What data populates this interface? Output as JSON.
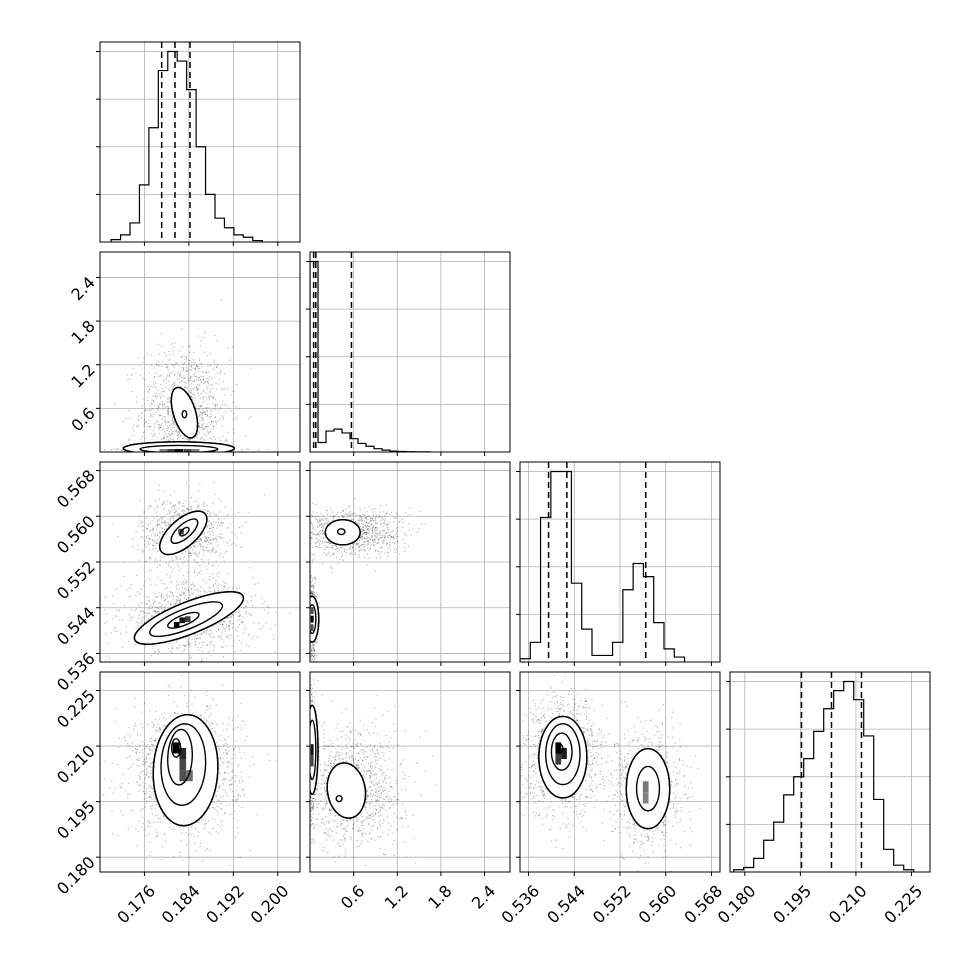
{
  "chart_data": {
    "type": "corner",
    "grid": true,
    "params": [
      {
        "range": [
          0.168,
          0.204
        ],
        "ticks": [
          0.176,
          0.184,
          0.192,
          0.2
        ],
        "tick_labels": [
          "0.176",
          "0.184",
          "0.192",
          "0.200"
        ],
        "histogram": {
          "edges": [
            0.17,
            0.1717,
            0.1734,
            0.1751,
            0.1768,
            0.1785,
            0.1802,
            0.1819,
            0.1836,
            0.1853,
            0.187,
            0.1887,
            0.1904,
            0.1921,
            0.1938,
            0.1955,
            0.1972
          ],
          "counts": [
            0.5,
            1.5,
            4,
            12,
            24,
            36,
            40,
            38,
            32,
            20,
            10,
            5,
            3,
            1.5,
            1,
            0.3
          ]
        },
        "quantiles": [
          0.1791,
          0.1815,
          0.1842
        ]
      },
      {
        "range": [
          0.0,
          2.75
        ],
        "ticks": [
          0.6,
          1.2,
          1.8,
          2.4
        ],
        "tick_labels": [
          "0.6",
          "1.2",
          "1.8",
          "2.4"
        ],
        "histogram": {
          "edges": [
            0.0,
            0.11,
            0.22,
            0.33,
            0.44,
            0.55,
            0.66,
            0.77,
            0.88,
            0.99,
            1.1,
            1.21,
            1.32,
            1.43,
            1.54,
            1.65
          ],
          "counts": [
            200,
            10,
            22,
            24,
            20,
            14,
            9,
            6,
            3.5,
            2,
            1,
            0.6,
            0.3,
            0.2,
            0.1
          ]
        },
        "quantiles": [
          0.05,
          0.08,
          0.57
        ]
      },
      {
        "range": [
          0.5345,
          0.5695
        ],
        "ticks": [
          0.536,
          0.544,
          0.552,
          0.56,
          0.568
        ],
        "tick_labels": [
          "0.536",
          "0.544",
          "0.552",
          "0.560",
          "0.568"
        ],
        "histogram": {
          "edges": [
            0.5345,
            0.5363,
            0.5381,
            0.5399,
            0.5417,
            0.5435,
            0.5453,
            0.5471,
            0.5489,
            0.5507,
            0.5525,
            0.5543,
            0.5561,
            0.5579,
            0.5597,
            0.5615,
            0.5633
          ],
          "counts": [
            1,
            6,
            44,
            58,
            58,
            24,
            10,
            2,
            2,
            6,
            22,
            30,
            26,
            12,
            4,
            1.5
          ]
        },
        "quantiles": [
          0.5395,
          0.5427,
          0.5565
        ]
      },
      {
        "range": [
          0.176,
          0.23
        ],
        "ticks": [
          0.18,
          0.195,
          0.21,
          0.225
        ],
        "tick_labels": [
          "0.180",
          "0.195",
          "0.210",
          "0.225"
        ],
        "histogram": {
          "edges": [
            0.177,
            0.1797,
            0.1824,
            0.1851,
            0.1878,
            0.1905,
            0.1932,
            0.1959,
            0.1986,
            0.2013,
            0.204,
            0.2067,
            0.2094,
            0.2121,
            0.2148,
            0.2175,
            0.2202,
            0.2229,
            0.2256
          ],
          "counts": [
            0.5,
            1,
            3,
            7,
            11,
            17,
            21,
            25,
            31,
            36,
            40,
            42,
            38,
            30,
            16,
            5,
            1.5,
            0.5
          ]
        },
        "quantiles": [
          0.1953,
          0.2034,
          0.2115
        ]
      }
    ],
    "pairs": [
      {
        "row": 1,
        "col": 0,
        "contours": [
          {
            "cx": 0.1832,
            "cy": 0.54,
            "rx": 0.002,
            "ry": 0.36,
            "rot": -0.3,
            "level": "outer"
          },
          {
            "cx": 0.1832,
            "cy": 0.52,
            "rx": 0.0004,
            "ry": 0.05,
            "rot": 0.0,
            "level": "inner"
          },
          {
            "cx": 0.1822,
            "cy": 0.05,
            "rx": 0.01,
            "ry": 0.09,
            "rot": 0.0,
            "level": "outer"
          },
          {
            "cx": 0.1822,
            "cy": 0.04,
            "rx": 0.007,
            "ry": 0.05,
            "rot": 0.0,
            "level": "inner"
          }
        ],
        "clouds": [
          {
            "cx": 0.1832,
            "cy": 0.55,
            "sx": 0.004,
            "sy": 0.45,
            "n": 1100
          },
          {
            "cx": 0.1822,
            "cy": 0.03,
            "sx": 0.005,
            "sy": 0.02,
            "n": 500
          }
        ],
        "density": [
          {
            "x": 0.1822,
            "y": 0.02,
            "w": 0.0016,
            "h": 0.04,
            "shade": 0.0
          },
          {
            "x": 0.1808,
            "y": 0.02,
            "w": 0.0014,
            "h": 0.04,
            "shade": 0.3
          },
          {
            "x": 0.1838,
            "y": 0.02,
            "w": 0.0014,
            "h": 0.04,
            "shade": 0.3
          },
          {
            "x": 0.1794,
            "y": 0.02,
            "w": 0.0014,
            "h": 0.04,
            "shade": 0.6
          },
          {
            "x": 0.1852,
            "y": 0.02,
            "w": 0.0014,
            "h": 0.04,
            "shade": 0.6
          }
        ]
      },
      {
        "row": 2,
        "col": 0,
        "contours": [
          {
            "cx": 0.183,
            "cy": 0.5571,
            "rx": 0.0052,
            "ry": 0.0024,
            "rot": -0.72,
            "level": "outer"
          },
          {
            "cx": 0.1832,
            "cy": 0.5574,
            "rx": 0.003,
            "ry": 0.0012,
            "rot": -0.72,
            "level": "inner"
          },
          {
            "cx": 0.1832,
            "cy": 0.5573,
            "rx": 0.001,
            "ry": 0.0005,
            "rot": -0.72,
            "level": "inner"
          },
          {
            "cx": 0.184,
            "cy": 0.5422,
            "rx": 0.0105,
            "ry": 0.0028,
            "rot": -0.38,
            "level": "outer"
          },
          {
            "cx": 0.1835,
            "cy": 0.542,
            "rx": 0.007,
            "ry": 0.0018,
            "rot": -0.38,
            "level": "inner"
          },
          {
            "cx": 0.183,
            "cy": 0.5418,
            "rx": 0.003,
            "ry": 0.0009,
            "rot": -0.38,
            "level": "inner"
          }
        ],
        "clouds": [
          {
            "cx": 0.1832,
            "cy": 0.5572,
            "sx": 0.004,
            "sy": 0.003,
            "n": 800
          },
          {
            "cx": 0.184,
            "cy": 0.5425,
            "sx": 0.006,
            "sy": 0.003,
            "n": 1100
          }
        ],
        "density": [
          {
            "x": 0.1818,
            "y": 0.541,
            "w": 0.001,
            "h": 0.001,
            "shade": 0.0
          },
          {
            "x": 0.1828,
            "y": 0.5418,
            "w": 0.001,
            "h": 0.001,
            "shade": 0.1
          },
          {
            "x": 0.1838,
            "y": 0.542,
            "w": 0.001,
            "h": 0.001,
            "shade": 0.3
          },
          {
            "x": 0.1826,
            "y": 0.5573,
            "w": 0.001,
            "h": 0.001,
            "shade": 0.35
          }
        ]
      },
      {
        "row": 3,
        "col": 0,
        "contours": [
          {
            "cx": 0.1834,
            "cy": 0.2035,
            "rx": 0.0058,
            "ry": 0.015,
            "rot": 0.05,
            "level": "outer"
          },
          {
            "cx": 0.183,
            "cy": 0.205,
            "rx": 0.004,
            "ry": 0.011,
            "rot": 0.05,
            "level": "inner"
          },
          {
            "cx": 0.1824,
            "cy": 0.207,
            "rx": 0.0022,
            "ry": 0.0075,
            "rot": 0.05,
            "level": "inner"
          },
          {
            "cx": 0.1817,
            "cy": 0.2095,
            "rx": 0.0008,
            "ry": 0.0025,
            "rot": 0.0,
            "level": "inner"
          }
        ],
        "clouds": [
          {
            "cx": 0.1834,
            "cy": 0.203,
            "sx": 0.005,
            "sy": 0.0085,
            "n": 1500
          }
        ],
        "density": [
          {
            "x": 0.1817,
            "y": 0.2095,
            "w": 0.0012,
            "h": 0.003,
            "shade": 0.0
          },
          {
            "x": 0.1829,
            "y": 0.208,
            "w": 0.0012,
            "h": 0.003,
            "shade": 0.2
          },
          {
            "x": 0.1829,
            "y": 0.205,
            "w": 0.0012,
            "h": 0.003,
            "shade": 0.35
          },
          {
            "x": 0.1829,
            "y": 0.202,
            "w": 0.0012,
            "h": 0.003,
            "shade": 0.4
          },
          {
            "x": 0.1841,
            "y": 0.202,
            "w": 0.0012,
            "h": 0.003,
            "shade": 0.55
          }
        ]
      },
      {
        "row": 2,
        "col": 1,
        "contours": [
          {
            "cx": 0.45,
            "cy": 0.5572,
            "rx": 0.24,
            "ry": 0.0022,
            "rot": 0.0,
            "level": "outer"
          },
          {
            "cx": 0.43,
            "cy": 0.5573,
            "rx": 0.05,
            "ry": 0.0005,
            "rot": 0.0,
            "level": "inner"
          },
          {
            "cx": 0.03,
            "cy": 0.542,
            "rx": 0.09,
            "ry": 0.004,
            "rot": 0.0,
            "level": "outer"
          },
          {
            "cx": 0.03,
            "cy": 0.542,
            "rx": 0.05,
            "ry": 0.0025,
            "rot": 0.0,
            "level": "inner"
          }
        ],
        "clouds": [
          {
            "cx": 0.55,
            "cy": 0.5572,
            "sx": 0.35,
            "sy": 0.002,
            "n": 1000
          },
          {
            "cx": 0.03,
            "cy": 0.542,
            "sx": 0.03,
            "sy": 0.004,
            "n": 500
          }
        ],
        "density": [
          {
            "x": 0.03,
            "y": 0.542,
            "w": 0.04,
            "h": 0.0012,
            "shade": 0.0
          },
          {
            "x": 0.03,
            "y": 0.5405,
            "w": 0.04,
            "h": 0.0012,
            "shade": 0.4
          },
          {
            "x": 0.03,
            "y": 0.5435,
            "w": 0.04,
            "h": 0.0012,
            "shade": 0.4
          }
        ]
      },
      {
        "row": 3,
        "col": 1,
        "contours": [
          {
            "cx": 0.5,
            "cy": 0.198,
            "rx": 0.26,
            "ry": 0.0075,
            "rot": -0.15,
            "level": "outer"
          },
          {
            "cx": 0.4,
            "cy": 0.1958,
            "rx": 0.04,
            "ry": 0.0008,
            "rot": 0.0,
            "level": "inner"
          },
          {
            "cx": 0.03,
            "cy": 0.209,
            "rx": 0.08,
            "ry": 0.012,
            "rot": 0.0,
            "level": "outer"
          },
          {
            "cx": 0.03,
            "cy": 0.209,
            "rx": 0.05,
            "ry": 0.008,
            "rot": 0.0,
            "level": "inner"
          }
        ],
        "clouds": [
          {
            "cx": 0.6,
            "cy": 0.1985,
            "sx": 0.35,
            "sy": 0.008,
            "n": 1100
          },
          {
            "cx": 0.03,
            "cy": 0.208,
            "sx": 0.03,
            "sy": 0.008,
            "n": 500
          }
        ],
        "density": [
          {
            "x": 0.03,
            "y": 0.209,
            "w": 0.04,
            "h": 0.003,
            "shade": 0.1
          },
          {
            "x": 0.03,
            "y": 0.206,
            "w": 0.04,
            "h": 0.003,
            "shade": 0.35
          }
        ]
      },
      {
        "row": 3,
        "col": 2,
        "contours": [
          {
            "cx": 0.542,
            "cy": 0.207,
            "rx": 0.0042,
            "ry": 0.011,
            "rot": 0.0,
            "level": "outer"
          },
          {
            "cx": 0.542,
            "cy": 0.2078,
            "rx": 0.003,
            "ry": 0.0082,
            "rot": 0.0,
            "level": "inner"
          },
          {
            "cx": 0.5418,
            "cy": 0.2085,
            "rx": 0.0018,
            "ry": 0.005,
            "rot": 0.0,
            "level": "inner"
          },
          {
            "cx": 0.5415,
            "cy": 0.2093,
            "rx": 0.0005,
            "ry": 0.0012,
            "rot": 0.0,
            "level": "inner"
          },
          {
            "cx": 0.5569,
            "cy": 0.1985,
            "rx": 0.0038,
            "ry": 0.0108,
            "rot": 0.0,
            "level": "outer"
          },
          {
            "cx": 0.5569,
            "cy": 0.1985,
            "rx": 0.002,
            "ry": 0.006,
            "rot": 0.0,
            "level": "inner"
          }
        ],
        "clouds": [
          {
            "cx": 0.542,
            "cy": 0.207,
            "sx": 0.0035,
            "sy": 0.008,
            "n": 1100
          },
          {
            "cx": 0.5569,
            "cy": 0.1985,
            "sx": 0.003,
            "sy": 0.008,
            "n": 900
          }
        ],
        "density": [
          {
            "x": 0.5412,
            "y": 0.2095,
            "w": 0.001,
            "h": 0.003,
            "shade": 0.0
          },
          {
            "x": 0.5422,
            "y": 0.208,
            "w": 0.001,
            "h": 0.003,
            "shade": 0.15
          },
          {
            "x": 0.5412,
            "y": 0.2065,
            "w": 0.001,
            "h": 0.003,
            "shade": 0.3
          },
          {
            "x": 0.5565,
            "y": 0.199,
            "w": 0.001,
            "h": 0.003,
            "shade": 0.6
          },
          {
            "x": 0.5565,
            "y": 0.196,
            "w": 0.001,
            "h": 0.003,
            "shade": 0.65
          }
        ]
      }
    ]
  }
}
